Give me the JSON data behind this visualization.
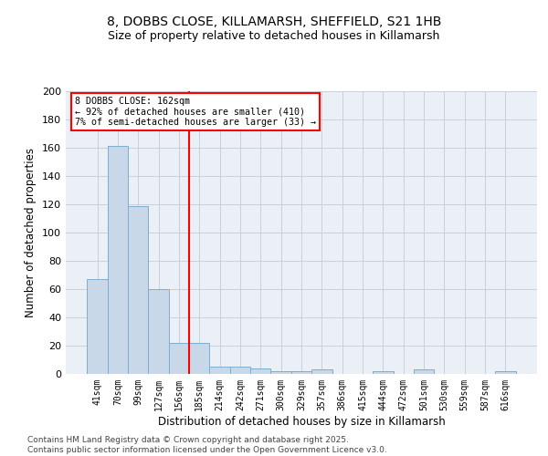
{
  "title_line1": "8, DOBBS CLOSE, KILLAMARSH, SHEFFIELD, S21 1HB",
  "title_line2": "Size of property relative to detached houses in Killamarsh",
  "xlabel": "Distribution of detached houses by size in Killamarsh",
  "ylabel": "Number of detached properties",
  "categories": [
    "41sqm",
    "70sqm",
    "99sqm",
    "127sqm",
    "156sqm",
    "185sqm",
    "214sqm",
    "242sqm",
    "271sqm",
    "300sqm",
    "329sqm",
    "357sqm",
    "386sqm",
    "415sqm",
    "444sqm",
    "472sqm",
    "501sqm",
    "530sqm",
    "559sqm",
    "587sqm",
    "616sqm"
  ],
  "values": [
    67,
    161,
    119,
    60,
    22,
    22,
    5,
    5,
    4,
    2,
    2,
    3,
    0,
    0,
    2,
    0,
    3,
    0,
    0,
    0,
    2
  ],
  "bar_color": "#c8d8e8",
  "bar_edge_color": "#7aaed0",
  "grid_color": "#c8d0d8",
  "background_color": "#eaf0f6",
  "vline_x_index": 4.5,
  "vline_color": "red",
  "annotation_text": "8 DOBBS CLOSE: 162sqm\n← 92% of detached houses are smaller (410)\n7% of semi-detached houses are larger (33) →",
  "ylim": [
    0,
    200
  ],
  "yticks": [
    0,
    20,
    40,
    60,
    80,
    100,
    120,
    140,
    160,
    180,
    200
  ],
  "footer_line1": "Contains HM Land Registry data © Crown copyright and database right 2025.",
  "footer_line2": "Contains public sector information licensed under the Open Government Licence v3.0."
}
